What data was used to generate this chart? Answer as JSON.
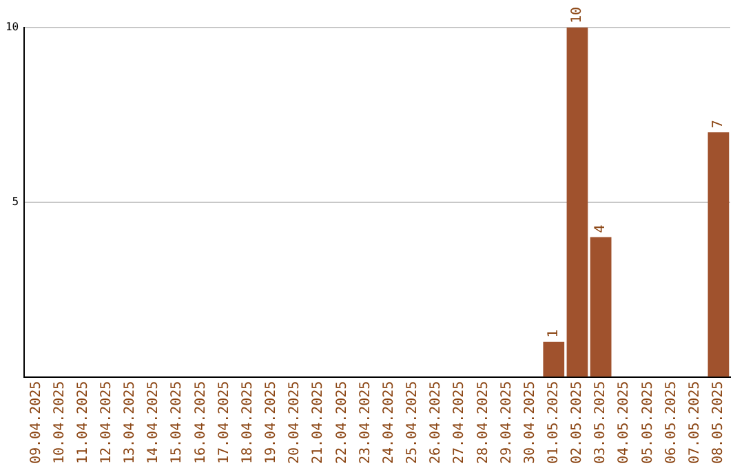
{
  "chart_data": {
    "type": "bar",
    "categories": [
      "09.04.2025",
      "10.04.2025",
      "11.04.2025",
      "12.04.2025",
      "13.04.2025",
      "14.04.2025",
      "15.04.2025",
      "16.04.2025",
      "17.04.2025",
      "18.04.2025",
      "19.04.2025",
      "20.04.2025",
      "21.04.2025",
      "22.04.2025",
      "23.04.2025",
      "24.04.2025",
      "25.04.2025",
      "26.04.2025",
      "27.04.2025",
      "28.04.2025",
      "29.04.2025",
      "30.04.2025",
      "01.05.2025",
      "02.05.2025",
      "03.05.2025",
      "04.05.2025",
      "05.05.2025",
      "06.05.2025",
      "07.05.2025",
      "08.05.2025"
    ],
    "values": [
      0,
      0,
      0,
      0,
      0,
      0,
      0,
      0,
      0,
      0,
      0,
      0,
      0,
      0,
      0,
      0,
      0,
      0,
      0,
      0,
      0,
      0,
      1,
      10,
      4,
      0,
      0,
      0,
      0,
      7
    ],
    "value_labels": [
      null,
      null,
      null,
      null,
      null,
      null,
      null,
      null,
      null,
      null,
      null,
      null,
      null,
      null,
      null,
      null,
      null,
      null,
      null,
      null,
      null,
      null,
      "1",
      "10",
      "4",
      null,
      null,
      null,
      null,
      "7"
    ],
    "color": "#a0522d",
    "ylim": [
      0,
      10
    ],
    "yticks": [
      5,
      10
    ],
    "grid": "y",
    "legend": false
  }
}
